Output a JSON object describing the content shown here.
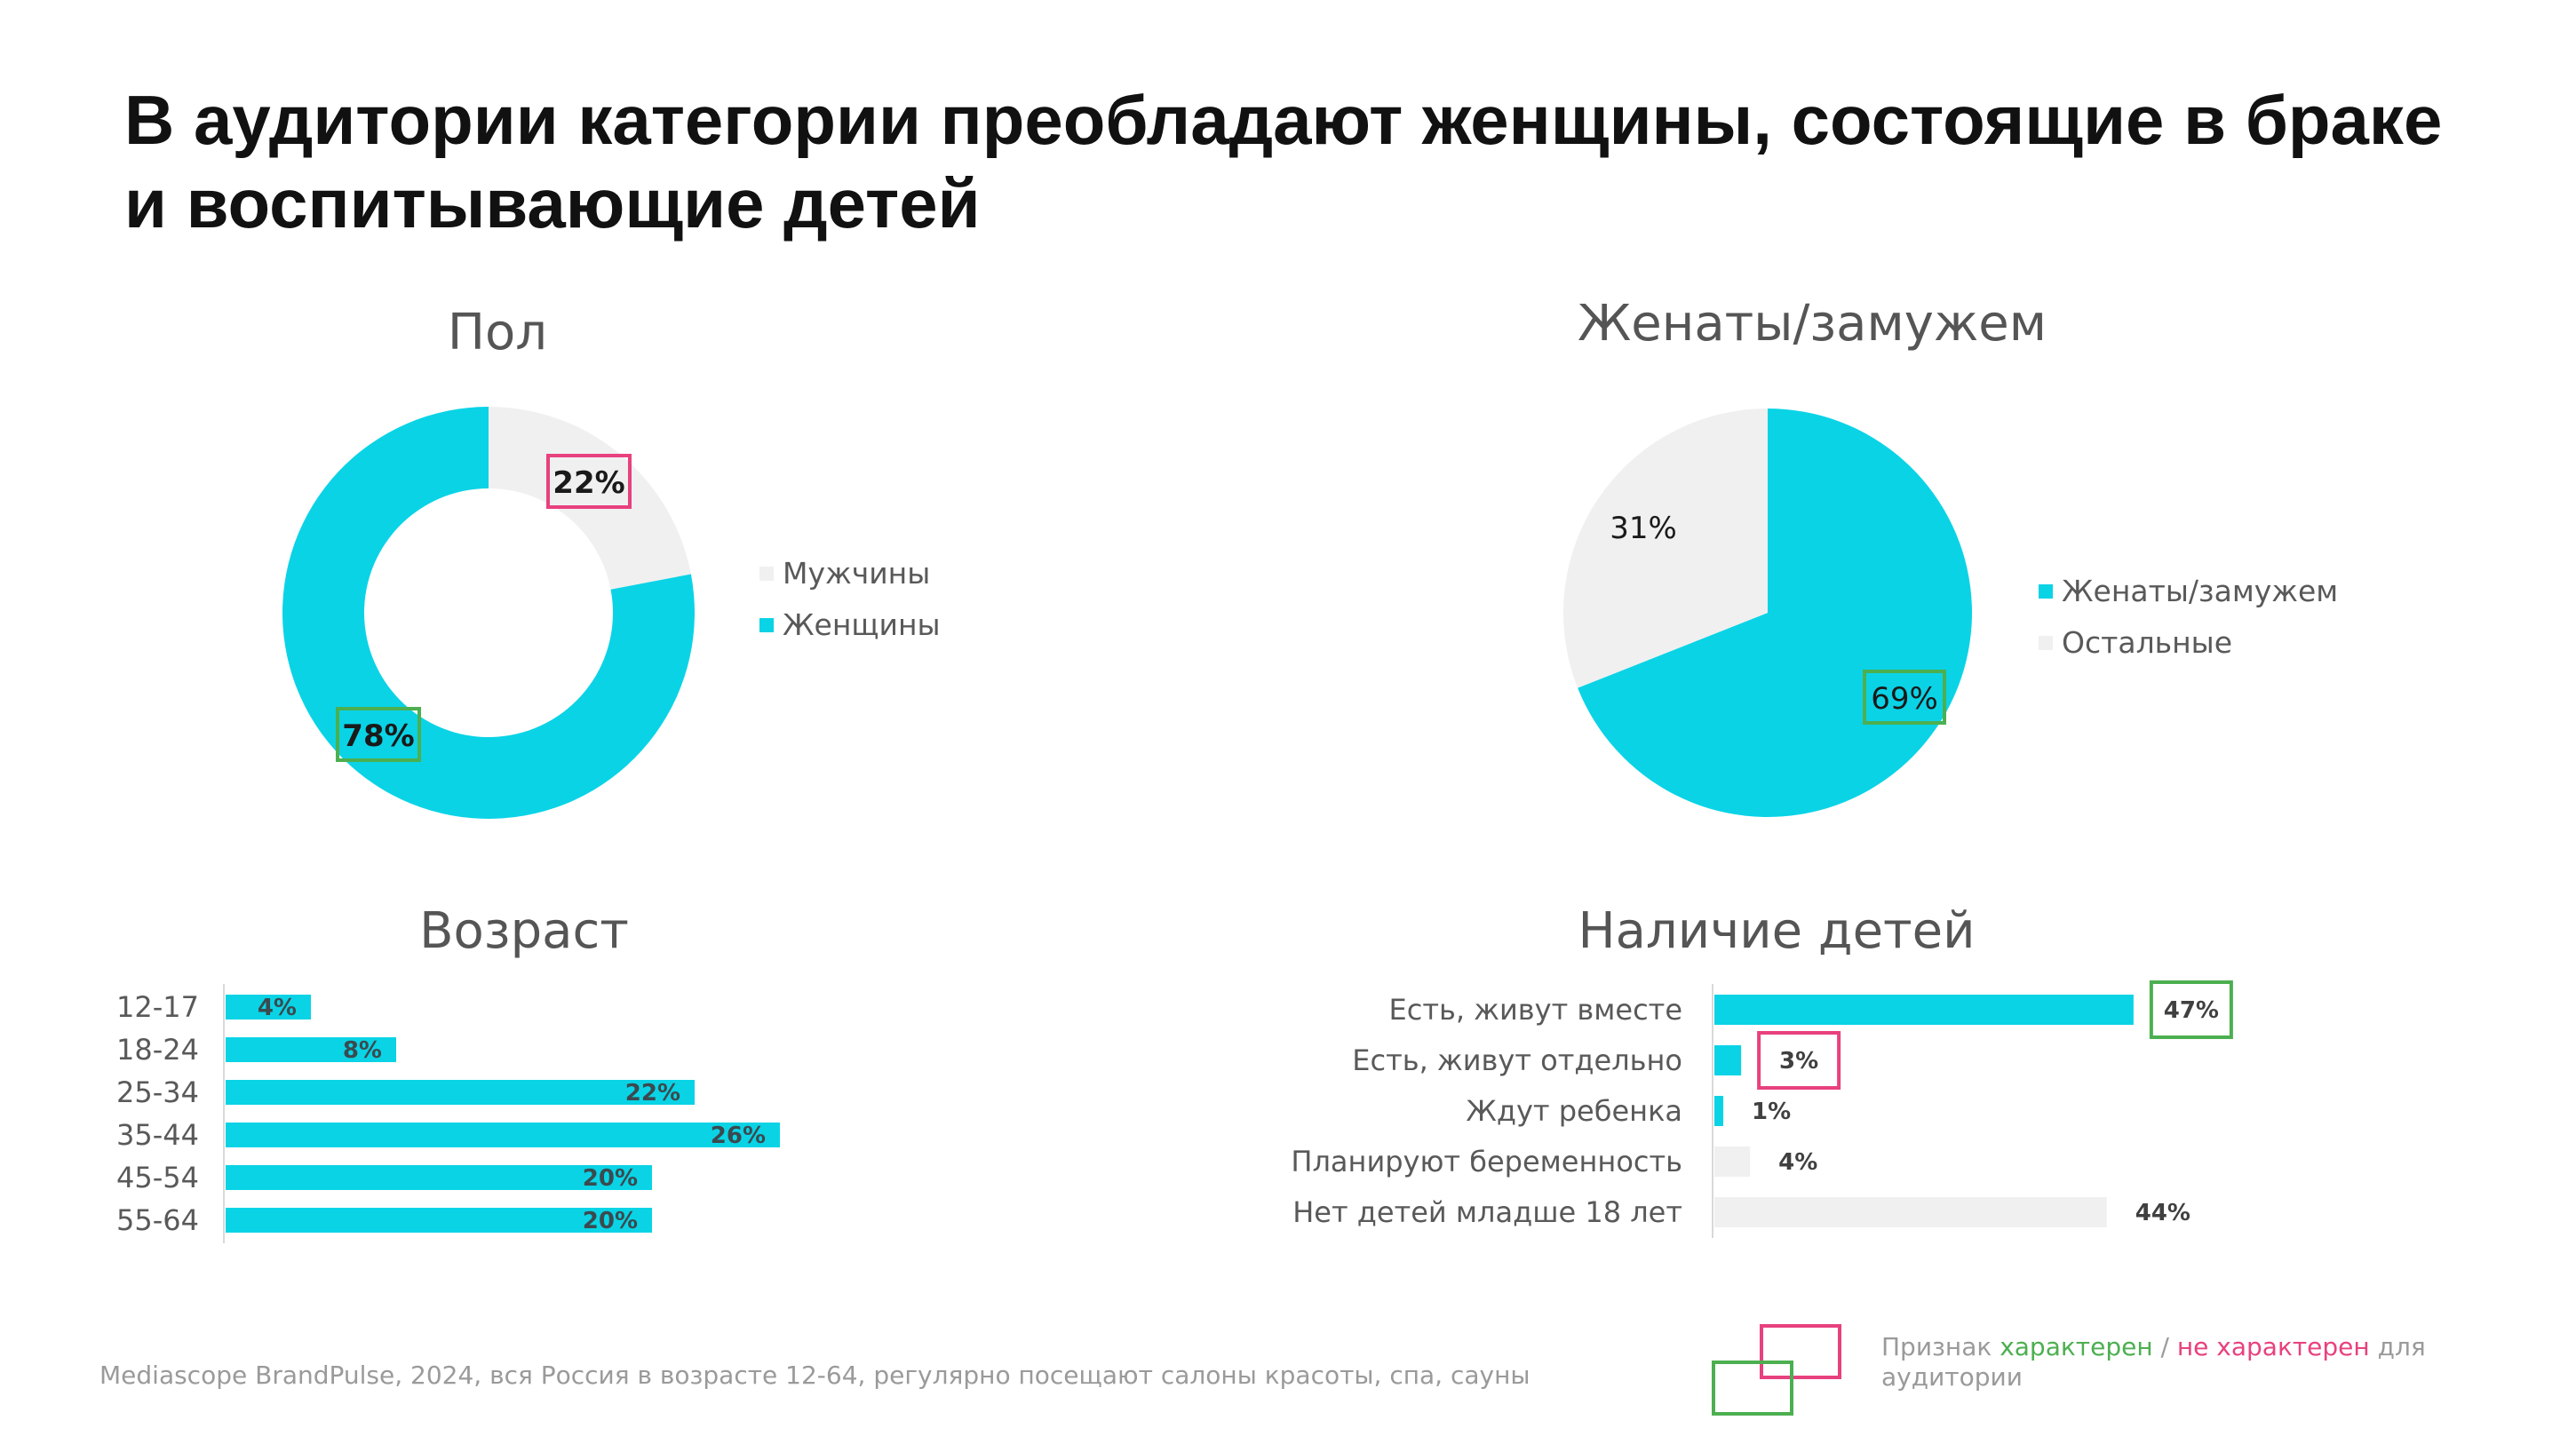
{
  "title": "В аудитории категории преобладают женщины, состоящие в браке и воспитывающие детей",
  "colors": {
    "accent": "#0ad3e6",
    "neutral": "#f0f0f0",
    "good": "#4caf50",
    "bad": "#e8417e"
  },
  "chart_data": [
    {
      "type": "pie",
      "variant": "donut",
      "title": "Пол",
      "categories": [
        "Мужчины",
        "Женщины"
      ],
      "values": [
        22,
        78
      ],
      "labels": [
        "22%",
        "78%"
      ],
      "colors": [
        "#f0f0f0",
        "#0ad3e6"
      ],
      "highlight": [
        "bad",
        "good"
      ],
      "legend": "right"
    },
    {
      "type": "pie",
      "title": "Женаты/замужем",
      "categories": [
        "Женаты/замужем",
        "Остальные"
      ],
      "values": [
        69,
        31
      ],
      "labels": [
        "69%",
        "31%"
      ],
      "colors": [
        "#0ad3e6",
        "#f0f0f0"
      ],
      "highlight": [
        "good",
        null
      ],
      "legend": "right"
    },
    {
      "type": "bar",
      "orientation": "horizontal",
      "title": "Возраст",
      "categories": [
        "12-17",
        "18-24",
        "25-34",
        "35-44",
        "45-54",
        "55-64"
      ],
      "values": [
        4,
        8,
        22,
        26,
        20,
        20
      ],
      "labels": [
        "4%",
        "8%",
        "22%",
        "26%",
        "20%",
        "20%"
      ],
      "xlim": [
        0,
        30
      ]
    },
    {
      "type": "bar",
      "orientation": "horizontal",
      "title": "Наличие детей",
      "categories": [
        "Есть, живут вместе",
        "Есть, живут отдельно",
        "Ждут ребенка",
        "Планируют беременность",
        "Нет детей младше 18 лет"
      ],
      "values": [
        47,
        3,
        1,
        4,
        44
      ],
      "labels": [
        "47%",
        "3%",
        "1%",
        "4%",
        "44%"
      ],
      "colors": [
        "#0ad3e6",
        "#0ad3e6",
        "#0ad3e6",
        "#f0f0f0",
        "#f0f0f0"
      ],
      "highlight": [
        "good",
        "bad",
        null,
        null,
        null
      ],
      "xlim": [
        0,
        50
      ]
    }
  ],
  "footer": {
    "source": "Mediascope BrandPulse, 2024, вся Россия в возрасте 12-64, регулярно посещают салоны красоты, спа, сауны",
    "key_prefix": "Признак ",
    "key_good": "характерен",
    "key_sep": " / ",
    "key_bad": "не характерен",
    "key_suffix": " для аудитории"
  }
}
